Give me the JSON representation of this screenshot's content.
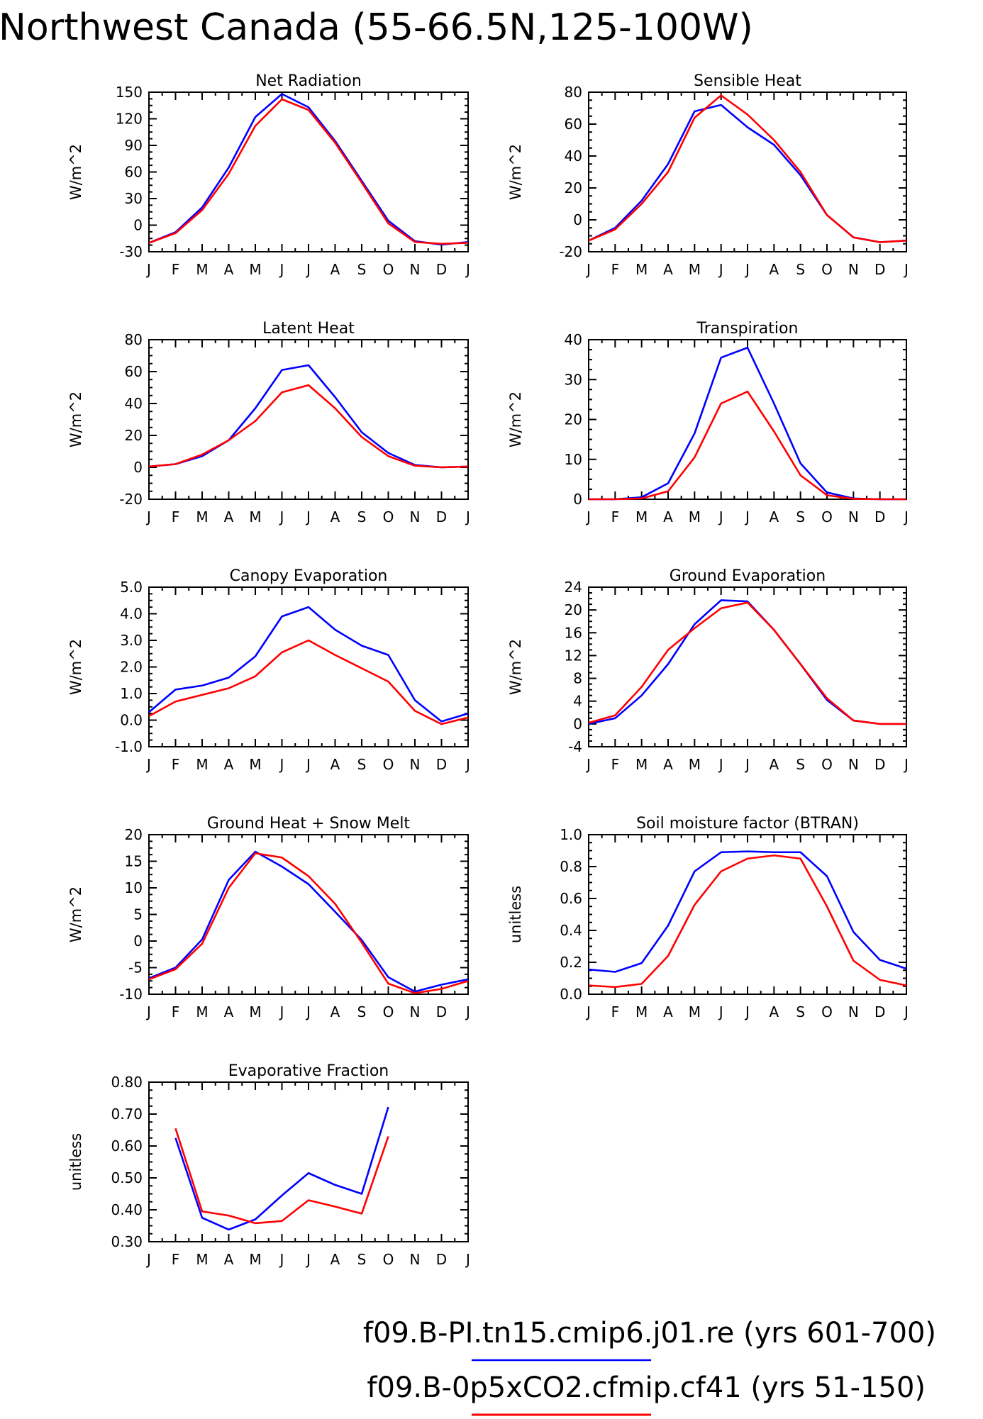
{
  "figure": {
    "title": "Northwest Canada (55-66.5N,125-100W)",
    "legend": [
      {
        "label": "f09.B-PI.tn15.cmip6.j01.re (yrs 601-700)",
        "color": "#0000ff"
      },
      {
        "label": "f09.B-0p5xCO2.cfmip.cf41 (yrs 51-150)",
        "color": "#ff0000"
      }
    ]
  },
  "chart_data": [
    {
      "type": "line",
      "title": "Net Radiation",
      "ylabel": "W/m^2",
      "categories": [
        "J",
        "F",
        "M",
        "A",
        "M",
        "J",
        "J",
        "A",
        "S",
        "O",
        "N",
        "D",
        "J"
      ],
      "ylim": [
        -30,
        150
      ],
      "yticks": [
        "150",
        "120",
        "90",
        "60",
        "30",
        "0",
        "-30"
      ],
      "series": [
        {
          "color": "#0000ff",
          "values": [
            -20,
            -8,
            20,
            65,
            122,
            148,
            133,
            95,
            50,
            5,
            -18,
            -22,
            -19
          ]
        },
        {
          "color": "#ff0000",
          "values": [
            -20,
            -9,
            17,
            58,
            112,
            142,
            130,
            93,
            48,
            2,
            -19,
            -21,
            -20
          ]
        }
      ]
    },
    {
      "type": "line",
      "title": "Sensible Heat",
      "ylabel": "W/m^2",
      "categories": [
        "J",
        "F",
        "M",
        "A",
        "M",
        "J",
        "J",
        "A",
        "S",
        "O",
        "N",
        "D",
        "J"
      ],
      "ylim": [
        -20,
        80
      ],
      "yticks": [
        "80",
        "60",
        "40",
        "20",
        "0",
        "-20"
      ],
      "series": [
        {
          "color": "#0000ff",
          "values": [
            -13,
            -5,
            12,
            35,
            68,
            72,
            58,
            47,
            28,
            3,
            -11,
            -14,
            -13
          ]
        },
        {
          "color": "#ff0000",
          "values": [
            -13,
            -6,
            10,
            30,
            64,
            78,
            66,
            50,
            30,
            3,
            -11,
            -14,
            -13
          ]
        }
      ]
    },
    {
      "type": "line",
      "title": "Latent Heat",
      "ylabel": "W/m^2",
      "categories": [
        "J",
        "F",
        "M",
        "A",
        "M",
        "J",
        "J",
        "A",
        "S",
        "O",
        "N",
        "D",
        "J"
      ],
      "ylim": [
        -20,
        80
      ],
      "yticks": [
        "80",
        "60",
        "40",
        "20",
        "0",
        "-20"
      ],
      "series": [
        {
          "color": "#0000ff",
          "values": [
            0.5,
            2,
            7,
            17,
            37,
            61,
            64,
            44,
            22,
            9,
            1.5,
            0,
            0.5
          ]
        },
        {
          "color": "#ff0000",
          "values": [
            0.5,
            2,
            8,
            17,
            29,
            47,
            51.5,
            37,
            19,
            7,
            1,
            0,
            0.5
          ]
        }
      ]
    },
    {
      "type": "line",
      "title": "Transpiration",
      "ylabel": "W/m^2",
      "categories": [
        "J",
        "F",
        "M",
        "A",
        "M",
        "J",
        "J",
        "A",
        "S",
        "O",
        "N",
        "D",
        "J"
      ],
      "ylim": [
        0,
        40
      ],
      "yticks": [
        "40",
        "30",
        "20",
        "10",
        "0"
      ],
      "series": [
        {
          "color": "#0000ff",
          "values": [
            0,
            0,
            0.5,
            4,
            16.5,
            35.5,
            38,
            24,
            9,
            1.7,
            0.2,
            0,
            0
          ]
        },
        {
          "color": "#ff0000",
          "values": [
            0,
            0,
            0.2,
            2,
            10.5,
            24,
            27,
            17,
            6,
            1,
            0.1,
            0,
            0
          ]
        }
      ]
    },
    {
      "type": "line",
      "title": "Canopy Evaporation",
      "ylabel": "W/m^2",
      "categories": [
        "J",
        "F",
        "M",
        "A",
        "M",
        "J",
        "J",
        "A",
        "S",
        "O",
        "N",
        "D",
        "J"
      ],
      "ylim": [
        -1,
        5
      ],
      "yticks": [
        "5.0",
        "4.0",
        "3.0",
        "2.0",
        "1.0",
        "0.0",
        "-1.0"
      ],
      "series": [
        {
          "color": "#0000ff",
          "values": [
            0.3,
            1.15,
            1.3,
            1.6,
            2.4,
            3.9,
            4.25,
            3.4,
            2.8,
            2.45,
            0.75,
            -0.05,
            0.25
          ]
        },
        {
          "color": "#ff0000",
          "values": [
            0.15,
            0.7,
            0.95,
            1.2,
            1.65,
            2.55,
            3.0,
            2.45,
            1.95,
            1.45,
            0.35,
            -0.15,
            0.1
          ]
        }
      ]
    },
    {
      "type": "line",
      "title": "Ground Evaporation",
      "ylabel": "W/m^2",
      "categories": [
        "J",
        "F",
        "M",
        "A",
        "M",
        "J",
        "J",
        "A",
        "S",
        "O",
        "N",
        "D",
        "J"
      ],
      "ylim": [
        -4,
        24
      ],
      "yticks": [
        "24",
        "20",
        "16",
        "12",
        "8",
        "4",
        "0",
        "-4"
      ],
      "series": [
        {
          "color": "#0000ff",
          "values": [
            0,
            1,
            5,
            10.5,
            17.5,
            21.7,
            21.5,
            16.5,
            10.5,
            4.2,
            0.6,
            0,
            0
          ]
        },
        {
          "color": "#ff0000",
          "values": [
            0.2,
            1.5,
            6.5,
            13,
            16.8,
            20.3,
            21.3,
            16.5,
            10.5,
            4.5,
            0.6,
            0,
            0
          ]
        }
      ]
    },
    {
      "type": "line",
      "title": "Ground Heat + Snow Melt",
      "ylabel": "W/m^2",
      "categories": [
        "J",
        "F",
        "M",
        "A",
        "M",
        "J",
        "J",
        "A",
        "S",
        "O",
        "N",
        "D",
        "J"
      ],
      "ylim": [
        -10,
        20
      ],
      "yticks": [
        "20",
        "15",
        "10",
        "5",
        "0",
        "-5",
        "-10"
      ],
      "series": [
        {
          "color": "#0000ff",
          "values": [
            -7,
            -5,
            0.3,
            11.5,
            16.8,
            14,
            10.7,
            5.5,
            0.2,
            -6.8,
            -9.5,
            -8.2,
            -7.2
          ]
        },
        {
          "color": "#ff0000",
          "values": [
            -7.2,
            -5.3,
            -0.5,
            10,
            16.5,
            15.7,
            12.2,
            7,
            -0.3,
            -8,
            -9.8,
            -9,
            -7.5
          ]
        }
      ]
    },
    {
      "type": "line",
      "title": "Soil moisture factor (BTRAN)",
      "ylabel": "unitless",
      "categories": [
        "J",
        "F",
        "M",
        "A",
        "M",
        "J",
        "J",
        "A",
        "S",
        "O",
        "N",
        "D",
        "J"
      ],
      "ylim": [
        0,
        1
      ],
      "yticks": [
        "1.0",
        "0.8",
        "0.6",
        "0.4",
        "0.2",
        "0.0"
      ],
      "series": [
        {
          "color": "#0000ff",
          "values": [
            0.155,
            0.14,
            0.195,
            0.43,
            0.77,
            0.89,
            0.895,
            0.89,
            0.89,
            0.74,
            0.39,
            0.215,
            0.16
          ]
        },
        {
          "color": "#ff0000",
          "values": [
            0.055,
            0.045,
            0.065,
            0.24,
            0.56,
            0.77,
            0.85,
            0.87,
            0.85,
            0.55,
            0.21,
            0.09,
            0.055
          ]
        }
      ]
    },
    {
      "type": "line",
      "title": "Evaporative Fraction",
      "ylabel": "unitless",
      "categories": [
        "J",
        "F",
        "M",
        "A",
        "M",
        "J",
        "J",
        "A",
        "S",
        "O",
        "N",
        "D",
        "J"
      ],
      "ylim": [
        0.3,
        0.8
      ],
      "yticks": [
        "0.80",
        "0.70",
        "0.60",
        "0.50",
        "0.40",
        "0.30"
      ],
      "series": [
        {
          "color": "#0000ff",
          "values": [
            null,
            0.625,
            0.375,
            0.338,
            0.37,
            0.445,
            0.515,
            0.478,
            0.45,
            0.722,
            null,
            null,
            null
          ]
        },
        {
          "color": "#ff0000",
          "values": [
            null,
            0.655,
            0.395,
            0.382,
            0.358,
            0.365,
            0.43,
            0.41,
            0.388,
            0.63,
            null,
            null,
            null
          ]
        }
      ]
    }
  ]
}
